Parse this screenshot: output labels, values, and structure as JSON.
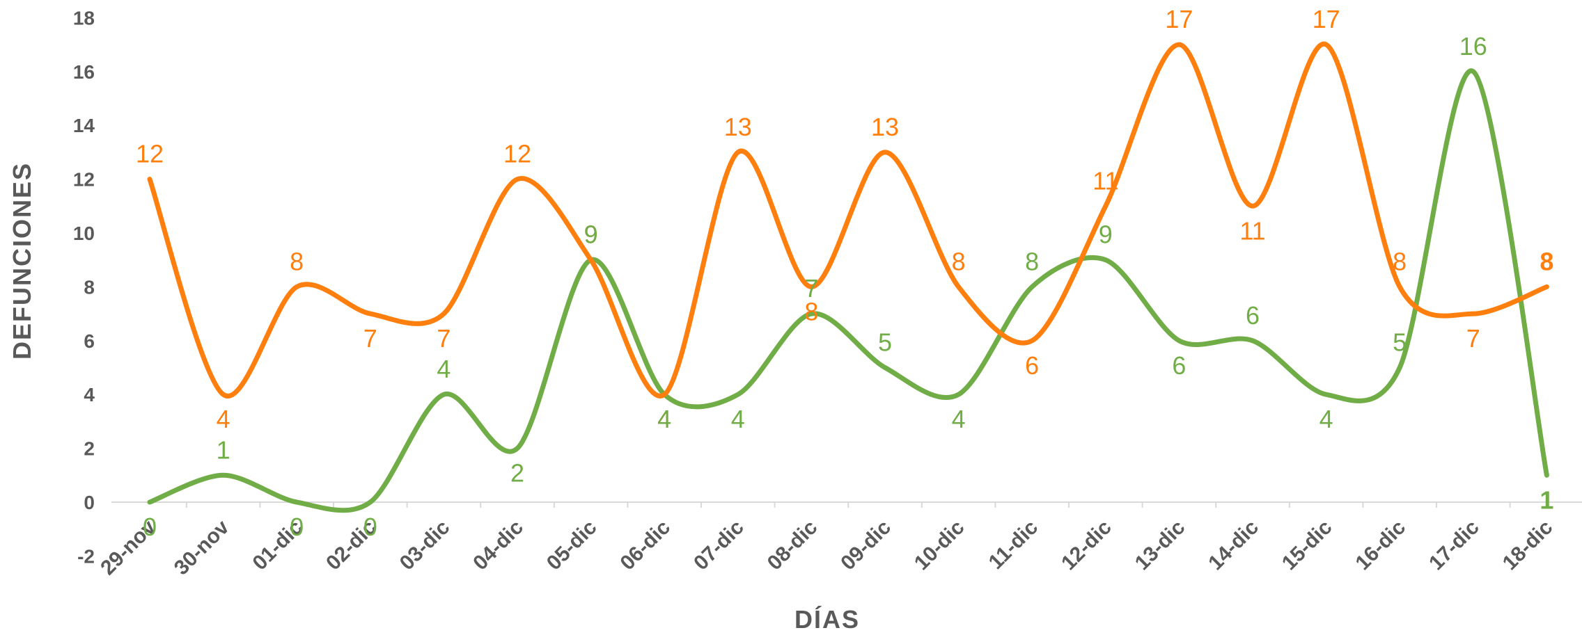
{
  "chart_data": {
    "type": "line",
    "title": "",
    "xlabel": "DÍAS",
    "ylabel": "DEFUNCIONES",
    "ylim": [
      -2,
      18
    ],
    "yticks": [
      -2,
      0,
      2,
      4,
      6,
      8,
      10,
      12,
      14,
      16,
      18
    ],
    "categories": [
      "29-nov",
      "30-nov",
      "01-dic",
      "02-dic",
      "03-dic",
      "04-dic",
      "05-dic",
      "06-dic",
      "07-dic",
      "08-dic",
      "09-dic",
      "10-dic",
      "11-dic",
      "12-dic",
      "13-dic",
      "14-dic",
      "15-dic",
      "16-dic",
      "17-dic",
      "18-dic"
    ],
    "series": [
      {
        "color": "#FF7F0E",
        "values": [
          12,
          4,
          8,
          7,
          7,
          12,
          9,
          4,
          13,
          8,
          13,
          8,
          6,
          11,
          17,
          11,
          17,
          8,
          7,
          8
        ]
      },
      {
        "color": "#70AD47",
        "values": [
          0,
          1,
          0,
          0,
          4,
          2,
          9,
          4,
          4,
          7,
          5,
          4,
          8,
          9,
          6,
          6,
          4,
          5,
          16,
          1
        ]
      }
    ],
    "grid": false,
    "legend": "none"
  }
}
